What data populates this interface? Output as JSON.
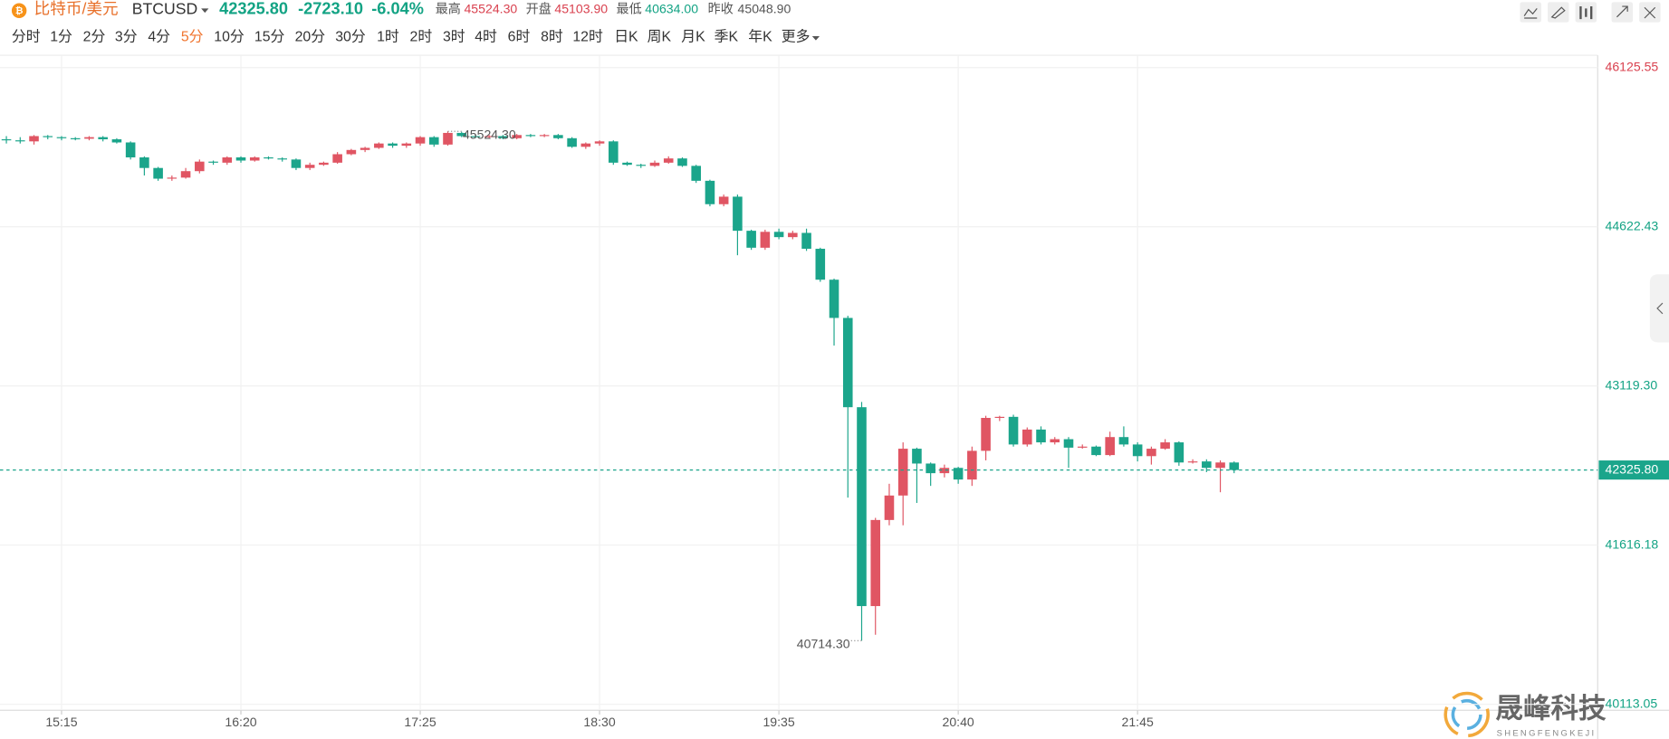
{
  "header": {
    "name": "比特币/美元",
    "symbol": "BTCUSD",
    "price": "42325.80",
    "change": "-2723.10",
    "change_pct": "-6.04%",
    "stats": [
      {
        "label": "最高",
        "value": "45524.30"
      },
      {
        "label": "开盘",
        "value": "45103.90"
      },
      {
        "label": "最低",
        "value": "40634.00"
      },
      {
        "label": "昨收",
        "value": "45048.90"
      }
    ]
  },
  "toolbar": {
    "periods": [
      "分时",
      "1分",
      "2分",
      "3分",
      "4分",
      "5分",
      "10分",
      "15分",
      "20分",
      "30分",
      "1时",
      "2时",
      "3时",
      "4时",
      "6时",
      "8时",
      "12时",
      "日K",
      "周K",
      "月K",
      "季K",
      "年K"
    ],
    "more": "更多",
    "selected_index": 5
  },
  "watermark": {
    "title": "晟峰科技",
    "subtitle": "SHENGFENGKEJI"
  },
  "chart_data": {
    "type": "candlestick",
    "categories": [
      null,
      null,
      null,
      null,
      "15:15",
      null,
      null,
      null,
      null,
      null,
      null,
      null,
      null,
      null,
      null,
      null,
      null,
      "16:20",
      null,
      null,
      null,
      null,
      null,
      null,
      null,
      null,
      null,
      null,
      null,
      null,
      "17:25",
      null,
      null,
      null,
      null,
      null,
      null,
      null,
      null,
      null,
      null,
      null,
      null,
      "18:30",
      null,
      null,
      null,
      null,
      null,
      null,
      null,
      null,
      null,
      null,
      null,
      null,
      "19:35",
      null,
      null,
      null,
      null,
      null,
      null,
      null,
      null,
      null,
      null,
      null,
      null,
      "20:40",
      null,
      null,
      null,
      null,
      null,
      null,
      null,
      null,
      null,
      null,
      null,
      null,
      "21:45",
      null,
      null,
      null,
      null,
      null,
      null,
      null
    ],
    "open": [
      45449,
      45439,
      45429,
      45479,
      45469,
      45459,
      45454,
      45469,
      45449,
      45419,
      45278,
      45178,
      45077,
      45087,
      45148,
      45238,
      45228,
      45278,
      45248,
      45278,
      45268,
      45258,
      45178,
      45208,
      45228,
      45308,
      45348,
      45368,
      45409,
      45388,
      45409,
      45469,
      45399,
      45509,
      45479,
      45469,
      45479,
      45459,
      45489,
      45479,
      45489,
      45459,
      45378,
      45409,
      45429,
      45228,
      45208,
      45198,
      45228,
      45268,
      45198,
      45057,
      44836,
      44907,
      44585,
      44425,
      44575,
      44525,
      44565,
      44415,
      44123,
      43762,
      42919,
      41041,
      41854,
      42085,
      42527,
      42387,
      42296,
      42346,
      42236,
      42507,
      42818,
      42828,
      42567,
      42708,
      42587,
      42617,
      42537,
      42547,
      42467,
      42637,
      42567,
      42457,
      42527,
      42587,
      42397,
      42407,
      42346,
      42397
    ],
    "high": [
      45479,
      45469,
      45489,
      45489,
      45479,
      45469,
      45479,
      45479,
      45459,
      45429,
      45288,
      45188,
      45107,
      45178,
      45258,
      45248,
      45288,
      45288,
      45288,
      45288,
      45278,
      45268,
      45228,
      45238,
      45328,
      45358,
      45378,
      45419,
      45419,
      45419,
      45479,
      45479,
      45524.3,
      45519,
      45489,
      45489,
      45489,
      45499,
      45499,
      45499,
      45499,
      45469,
      45419,
      45439,
      45439,
      45238,
      45218,
      45248,
      45288,
      45278,
      45208,
      45067,
      44927,
      44927,
      44595,
      44595,
      44605,
      44585,
      44605,
      44425,
      44133,
      43782,
      42969,
      41874,
      42196,
      42587,
      42537,
      42397,
      42377,
      42356,
      42547,
      42838,
      42838,
      42848,
      42728,
      42738,
      42637,
      42637,
      42567,
      42557,
      42688,
      42738,
      42588,
      42547,
      42617,
      42597,
      42427,
      42427,
      42417,
      42407
    ],
    "low": [
      45409,
      45409,
      45399,
      45449,
      45439,
      45439,
      45439,
      45429,
      45409,
      45258,
      45107,
      45057,
      45057,
      45077,
      45127,
      45208,
      45208,
      45228,
      45238,
      45258,
      45238,
      45158,
      45158,
      45198,
      45218,
      45298,
      45328,
      45358,
      45368,
      45368,
      45388,
      45378,
      45388,
      45469,
      45459,
      45459,
      45449,
      45449,
      45469,
      45469,
      45449,
      45368,
      45358,
      45388,
      45208,
      45198,
      45178,
      45188,
      45218,
      45188,
      45037,
      44816,
      44816,
      44354,
      44405,
      44405,
      44505,
      44505,
      44395,
      44103,
      43501,
      42065,
      40714.3,
      40770,
      41804,
      41804,
      42015,
      42176,
      42256,
      42196,
      42176,
      42417,
      42788,
      42547,
      42547,
      42567,
      42567,
      42346,
      42527,
      42457,
      42457,
      42547,
      42407,
      42377,
      42517,
      42366,
      42387,
      42306,
      42116,
      42296
    ],
    "close": [
      45439,
      45429,
      45479,
      45469,
      45459,
      45454,
      45469,
      45449,
      45419,
      45278,
      45178,
      45077,
      45087,
      45148,
      45238,
      45228,
      45278,
      45248,
      45278,
      45268,
      45258,
      45178,
      45208,
      45228,
      45308,
      45348,
      45368,
      45409,
      45388,
      45409,
      45469,
      45399,
      45509,
      45479,
      45469,
      45479,
      45459,
      45489,
      45479,
      45489,
      45459,
      45378,
      45409,
      45429,
      45228,
      45208,
      45198,
      45228,
      45268,
      45198,
      45057,
      44836,
      44907,
      44585,
      44425,
      44575,
      44525,
      44565,
      44415,
      44123,
      43762,
      42919,
      41041,
      41854,
      42085,
      42527,
      42387,
      42296,
      42346,
      42236,
      42507,
      42818,
      42828,
      42567,
      42708,
      42587,
      42617,
      42537,
      42547,
      42467,
      42637,
      42567,
      42457,
      42527,
      42587,
      42397,
      42407,
      42346,
      42397,
      42325.8
    ],
    "up_color": "#e05563",
    "down_color": "#1ba58b",
    "ylim": [
      40057,
      46242
    ],
    "yticks": [
      {
        "value": 40113.05,
        "label": "40113.05"
      },
      41616.18,
      {
        "value": 43119.3,
        "label": "43119.30"
      },
      44622.43,
      46125.55
    ],
    "last_price": {
      "value": 42325.8,
      "label": "42325.80"
    },
    "high_marker": {
      "value": 45524.3,
      "label": "45524.30"
    },
    "low_marker": {
      "value": 40714.3,
      "label": "40714.30"
    },
    "grid": true
  }
}
